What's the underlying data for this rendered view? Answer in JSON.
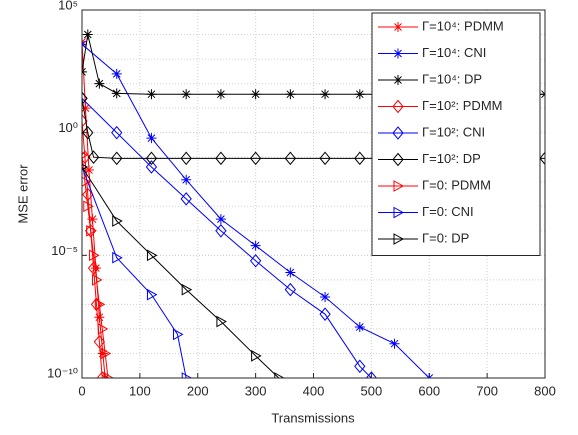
{
  "chart_data": {
    "type": "line",
    "xlabel": "Transmissions",
    "ylabel": "MSE error",
    "xlim": [
      0,
      800
    ],
    "xticks": [
      0,
      100,
      200,
      300,
      400,
      500,
      600,
      700,
      800
    ],
    "ylim": [
      1e-10,
      100000.0
    ],
    "yticks": [
      {
        "value": 1e-10,
        "label": "10⁻¹⁰"
      },
      {
        "value": 1e-05,
        "label": "10⁻⁵"
      },
      {
        "value": 1,
        "label": "10⁰"
      },
      {
        "value": 100000.0,
        "label": "10⁵"
      }
    ],
    "log_y": true,
    "grid": true,
    "minor_grid": true,
    "legend": "upper right",
    "series": [
      {
        "name": "Γ=10⁴: PDMM",
        "color": "#ff0000",
        "marker": "*",
        "x": [
          0,
          6,
          12,
          18,
          24,
          30,
          36,
          40
        ],
        "values": [
          5000.0,
          10.0,
          0.03,
          0.0003,
          3e-06,
          3e-08,
          1e-09,
          1e-10
        ]
      },
      {
        "name": "Γ=10⁴: CNI",
        "color": "#0000ff",
        "marker": "*",
        "x": [
          0,
          60,
          120,
          180,
          240,
          300,
          360,
          420,
          480,
          540,
          600
        ],
        "values": [
          4000.0,
          250.0,
          0.6,
          0.012,
          0.0003,
          2.5e-05,
          2e-06,
          2e-07,
          1.2e-08,
          2.5e-09,
          1e-10
        ]
      },
      {
        "name": "Γ=10⁴: DP",
        "color": "#000000",
        "marker": "*",
        "x": [
          0,
          10,
          30,
          60,
          120,
          180,
          240,
          300,
          360,
          420,
          480,
          540,
          600,
          660,
          720,
          780,
          800
        ],
        "values": [
          300.0,
          10000.0,
          100.0,
          40.0,
          37.0,
          37.0,
          37.0,
          37.0,
          37.0,
          37.0,
          37.0,
          37.0,
          37.0,
          37.0,
          37.0,
          37.0,
          37.0
        ]
      },
      {
        "name": "Γ=10²: PDMM",
        "color": "#ff0000",
        "marker": "d",
        "x": [
          0,
          5,
          10,
          15,
          20,
          25,
          30,
          35
        ],
        "values": [
          3,
          0.1,
          0.003,
          0.0001,
          3e-06,
          1e-07,
          3e-09,
          1e-10
        ]
      },
      {
        "name": "Γ=10²: CNI",
        "color": "#0000ff",
        "marker": "d",
        "x": [
          0,
          60,
          120,
          180,
          240,
          300,
          360,
          420,
          480,
          500
        ],
        "values": [
          25.0,
          1,
          0.04,
          0.002,
          0.0001,
          6e-06,
          4e-07,
          4e-08,
          3e-10,
          1e-10
        ]
      },
      {
        "name": "Γ=10²: DP",
        "color": "#000000",
        "marker": "d",
        "x": [
          0,
          10,
          20,
          60,
          120,
          180,
          240,
          300,
          360,
          420,
          480,
          540,
          600,
          660,
          720,
          780,
          800
        ],
        "values": [
          25.0,
          1,
          0.1,
          0.09,
          0.09,
          0.09,
          0.09,
          0.09,
          0.09,
          0.09,
          0.09,
          0.09,
          0.09,
          0.09,
          0.09,
          0.09,
          0.09
        ]
      },
      {
        "name": "Γ=0: PDMM",
        "color": "#ff0000",
        "marker": ">",
        "x": [
          0,
          5,
          10,
          15,
          20,
          25,
          30,
          35,
          40,
          45
        ],
        "values": [
          0.12,
          0.01,
          0.001,
          0.0001,
          1e-05,
          1e-06,
          1e-07,
          1e-08,
          1e-09,
          1e-10
        ]
      },
      {
        "name": "Γ=0: CNI",
        "color": "#0000ff",
        "marker": ">",
        "x": [
          0,
          60,
          120,
          165,
          180
        ],
        "values": [
          0.04,
          8e-06,
          2.5e-07,
          6e-09,
          1e-10
        ]
      },
      {
        "name": "Γ=0: DP",
        "color": "#000000",
        "marker": ">",
        "x": [
          0,
          60,
          120,
          180,
          240,
          300,
          340
        ],
        "values": [
          0.04,
          0.00025,
          1e-05,
          4e-07,
          2e-08,
          8e-10,
          1e-10
        ]
      }
    ]
  }
}
